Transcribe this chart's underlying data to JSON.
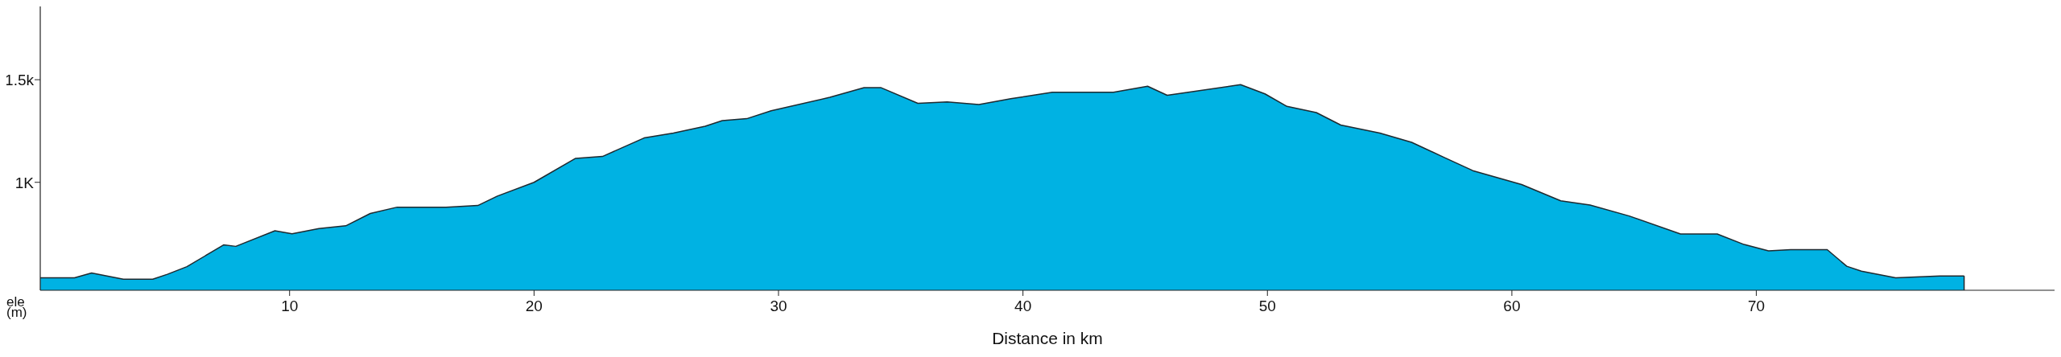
{
  "chart_data": {
    "type": "area",
    "xlabel": "Distance in km",
    "ylabel": "ele (m)",
    "xlim": [
      -0.2,
      82.2
    ],
    "xticks": [
      10,
      20,
      30,
      40,
      50,
      60,
      70
    ],
    "ylim": [
      474,
      1857
    ],
    "yticks": [
      {
        "value": 1000,
        "label": "1K"
      },
      {
        "value": 1500,
        "label": "1.5k"
      }
    ],
    "grid": false,
    "series": [
      {
        "color": "#00b2e3",
        "x": [
          -0.2,
          1.2,
          1.9,
          3.2,
          4.4,
          5.0,
          5.8,
          7.3,
          7.8,
          9.4,
          10.1,
          11.2,
          12.3,
          13.3,
          14.4,
          16.4,
          17.7,
          18.5,
          20.0,
          21.7,
          22.8,
          24.5,
          25.7,
          27.0,
          27.7,
          28.7,
          29.7,
          32.1,
          33.5,
          34.2,
          35.7,
          36.9,
          38.2,
          39.5,
          41.2,
          43.7,
          45.1,
          45.9,
          48.9,
          49.9,
          50.8,
          52.0,
          53.0,
          54.6,
          55.9,
          57.2,
          58.4,
          60.4,
          62.0,
          63.2,
          64.8,
          66.9,
          68.4,
          69.5,
          70.5,
          71.4,
          72.9,
          73.7,
          74.3,
          75.7,
          77.5,
          78.5
        ],
        "values": [
          535,
          535,
          558,
          528,
          528,
          552,
          589,
          695,
          688,
          764,
          749,
          775,
          788,
          848,
          879,
          879,
          887,
          933,
          1000,
          1117,
          1126,
          1216,
          1240,
          1273,
          1301,
          1310,
          1349,
          1414,
          1461,
          1461,
          1385,
          1392,
          1379,
          1407,
          1439,
          1439,
          1468,
          1424,
          1476,
          1431,
          1370,
          1340,
          1279,
          1240,
          1195,
          1123,
          1057,
          989,
          910,
          889,
          836,
          748,
          748,
          697,
          666,
          672,
          672,
          591,
          567,
          535,
          544,
          544
        ]
      }
    ]
  }
}
